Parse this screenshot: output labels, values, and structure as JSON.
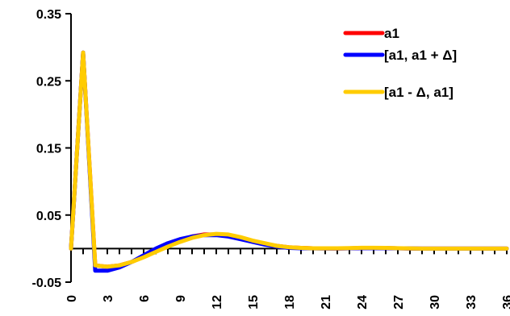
{
  "chart_data": {
    "type": "line",
    "xlim": [
      0,
      36
    ],
    "ylim": [
      -0.05,
      0.35
    ],
    "y_ticks": [
      "0.35",
      "0.25",
      "0.15",
      "0.05",
      "-0.05"
    ],
    "y_tick_values": [
      0.35,
      0.25,
      0.15,
      0.05,
      -0.05
    ],
    "x_ticks": [
      "0",
      "3",
      "6",
      "9",
      "12",
      "15",
      "18",
      "21",
      "24",
      "27",
      "30",
      "33",
      "36"
    ],
    "x_tick_values": [
      0,
      3,
      6,
      9,
      12,
      15,
      18,
      21,
      24,
      27,
      30,
      33,
      36
    ],
    "x": [
      0,
      1,
      2,
      3,
      4,
      5,
      6,
      7,
      8,
      9,
      10,
      11,
      12,
      13,
      14,
      15,
      16,
      17,
      18,
      19,
      20,
      21,
      22,
      23,
      24,
      25,
      26,
      27,
      28,
      29,
      30,
      31,
      32,
      33,
      34,
      35,
      36
    ],
    "series": [
      {
        "name": "a1",
        "color": "#ff0000",
        "values": [
          0,
          0.292,
          -0.025,
          -0.027,
          -0.025,
          -0.02,
          -0.012,
          -0.004,
          0.005,
          0.012,
          0.018,
          0.021,
          0.021,
          0.019,
          0.015,
          0.011,
          0.007,
          0.004,
          0.002,
          0.001,
          0.0005,
          0.0003,
          0.0002,
          0.0005,
          0.0008,
          0.001,
          0.0008,
          0.0005,
          0.0002,
          0,
          0,
          0,
          0,
          0,
          0,
          0,
          0
        ]
      },
      {
        "name": "[a1, a1 + Δ]",
        "color": "#0000ff",
        "values": [
          0,
          0.292,
          -0.033,
          -0.033,
          -0.028,
          -0.02,
          -0.01,
          0,
          0.008,
          0.014,
          0.018,
          0.02,
          0.02,
          0.018,
          0.014,
          0.01,
          0.006,
          0.003,
          0.001,
          0.0005,
          0.0003,
          0.0002,
          0.0002,
          0.0004,
          0.0006,
          0.0008,
          0.0006,
          0.0004,
          0.0002,
          0,
          0,
          0,
          0,
          0,
          0,
          0,
          0
        ]
      },
      {
        "name": "[a1 - Δ, a1]",
        "color": "#ffcc00",
        "values": [
          0,
          0.292,
          -0.025,
          -0.027,
          -0.025,
          -0.02,
          -0.013,
          -0.005,
          0.003,
          0.01,
          0.016,
          0.02,
          0.022,
          0.021,
          0.017,
          0.012,
          0.008,
          0.004,
          0.002,
          0.001,
          0.0005,
          0.0004,
          0.0004,
          0.0008,
          0.0012,
          0.0012,
          0.001,
          0.0006,
          0.0003,
          0,
          0,
          0,
          0,
          0,
          0,
          0,
          0
        ]
      }
    ],
    "legend_position": "top-right",
    "grid": false
  }
}
